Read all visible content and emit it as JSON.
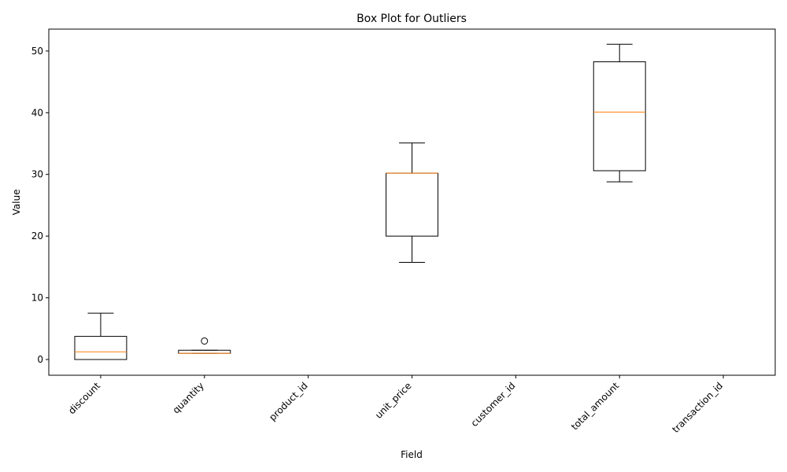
{
  "chart_data": {
    "type": "box",
    "title": "Box Plot for Outliers",
    "xlabel": "Field",
    "ylabel": "Value",
    "ylim": [
      -2.55,
      53.55
    ],
    "yticks": [
      0,
      10,
      20,
      30,
      40,
      50
    ],
    "grid": false,
    "colors": {
      "box": "#000000",
      "median": "#ff7f0e",
      "background": "#ffffff"
    },
    "categories": [
      "discount",
      "quantity",
      "product_id",
      "unit_price",
      "customer_id",
      "total_amount",
      "transaction_id"
    ],
    "boxes": [
      {
        "category": "discount",
        "whisker_low": 0,
        "q1": 0,
        "median": 1.25,
        "q3": 3.75,
        "whisker_high": 7.5,
        "outliers": []
      },
      {
        "category": "quantity",
        "whisker_low": 1,
        "q1": 1,
        "median": 1,
        "q3": 1.5,
        "whisker_high": 1.5,
        "outliers": [
          3
        ]
      },
      {
        "category": "product_id",
        "empty": true
      },
      {
        "category": "unit_price",
        "whisker_low": 15.75,
        "q1": 20,
        "median": 30.2,
        "q3": 30.2,
        "whisker_high": 35.1,
        "outliers": []
      },
      {
        "category": "customer_id",
        "empty": true
      },
      {
        "category": "total_amount",
        "whisker_low": 28.8,
        "q1": 30.6,
        "median": 40.1,
        "q3": 48.25,
        "whisker_high": 51.1,
        "outliers": []
      },
      {
        "category": "transaction_id",
        "empty": true
      }
    ]
  }
}
